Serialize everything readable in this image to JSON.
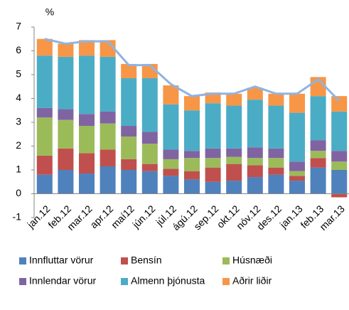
{
  "chart_data": {
    "type": "stacked_bar_line",
    "y_label": "%",
    "categories": [
      "jan.12",
      "feb.12",
      "mar.12",
      "apr.12",
      "maí12",
      "jún.12",
      "júl.12",
      "ágú.12",
      "sep.12",
      "okt.12",
      "nóv.12",
      "des.12",
      "jan.13",
      "feb.13",
      "mar.13"
    ],
    "series": [
      {
        "name": "Innfluttar vörur",
        "color": "#4f81bd",
        "values": [
          0.8,
          1.0,
          0.85,
          1.15,
          1.0,
          0.95,
          0.75,
          0.6,
          0.5,
          0.55,
          0.7,
          0.8,
          0.55,
          1.1,
          1.0
        ]
      },
      {
        "name": "Bensín",
        "color": "#c0504d",
        "values": [
          0.8,
          0.9,
          0.85,
          0.7,
          0.45,
          0.3,
          0.3,
          0.35,
          0.6,
          0.7,
          0.5,
          0.3,
          0.2,
          0.4,
          -0.15
        ]
      },
      {
        "name": "Húsnæði",
        "color": "#9bbb59",
        "values": [
          1.6,
          1.2,
          1.15,
          1.1,
          0.95,
          0.85,
          0.4,
          0.55,
          0.4,
          0.3,
          0.3,
          0.4,
          0.2,
          0.3,
          0.35
        ]
      },
      {
        "name": "Innlendar vörur",
        "color": "#8064a2",
        "values": [
          0.4,
          0.45,
          0.5,
          0.5,
          0.45,
          0.5,
          0.4,
          0.3,
          0.4,
          0.35,
          0.45,
          0.4,
          0.4,
          0.45,
          0.45
        ]
      },
      {
        "name": "Almenn þjónusta",
        "color": "#4bacc6",
        "values": [
          2.2,
          2.2,
          2.45,
          2.3,
          2.0,
          2.25,
          1.9,
          1.7,
          1.9,
          1.8,
          2.0,
          1.8,
          2.05,
          1.85,
          1.65
        ]
      },
      {
        "name": "Aðrir liðir",
        "color": "#f79646",
        "values": [
          0.7,
          0.55,
          0.65,
          0.7,
          0.6,
          0.6,
          0.8,
          0.6,
          0.45,
          0.5,
          0.5,
          0.5,
          0.8,
          0.8,
          0.65
        ]
      }
    ],
    "line": {
      "color": "#8eb4e3",
      "values": [
        6.5,
        6.3,
        6.4,
        6.4,
        5.4,
        5.4,
        4.6,
        4.1,
        4.2,
        4.2,
        4.5,
        4.2,
        4.2,
        4.8,
        3.9
      ]
    },
    "ylim": [
      -1,
      7
    ],
    "yticks": [
      -1,
      0,
      1,
      2,
      3,
      4,
      5,
      6,
      7
    ]
  }
}
